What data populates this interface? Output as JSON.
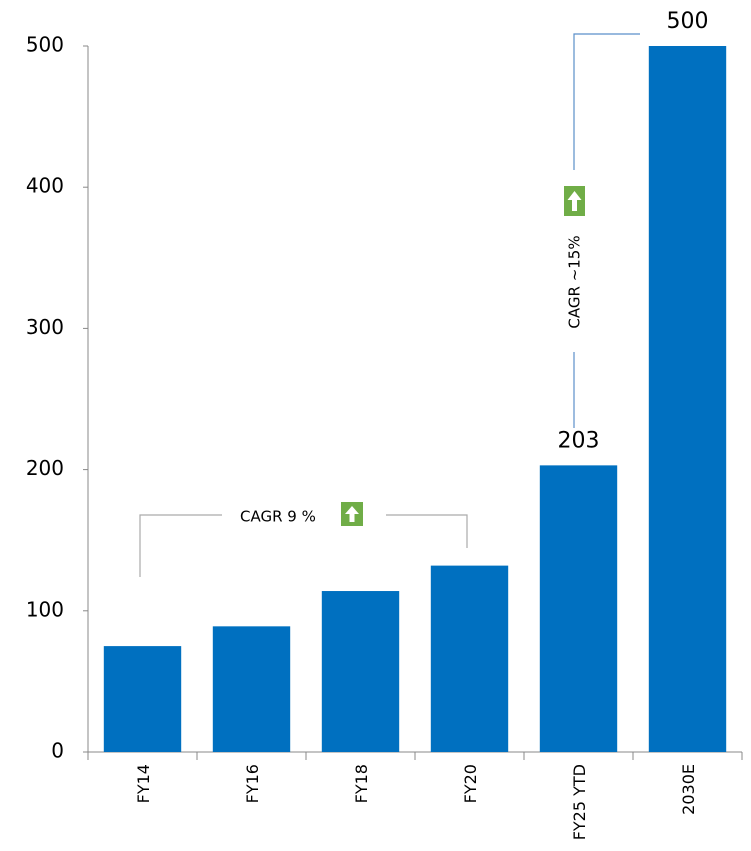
{
  "chart_data": {
    "type": "bar",
    "categories": [
      "FY14",
      "FY16",
      "FY18",
      "FY20",
      "FY25 YTD",
      "2030E"
    ],
    "values": [
      75,
      89,
      114,
      132,
      203,
      500
    ],
    "value_labels": [
      null,
      null,
      null,
      null,
      "203",
      "500"
    ],
    "color": "#0070c0",
    "ylim": [
      0,
      500
    ],
    "yticks": [
      0,
      100,
      200,
      300,
      400,
      500
    ],
    "grid": false,
    "annotations": [
      "CAGR 9 %",
      "CAGR ~15%"
    ]
  }
}
